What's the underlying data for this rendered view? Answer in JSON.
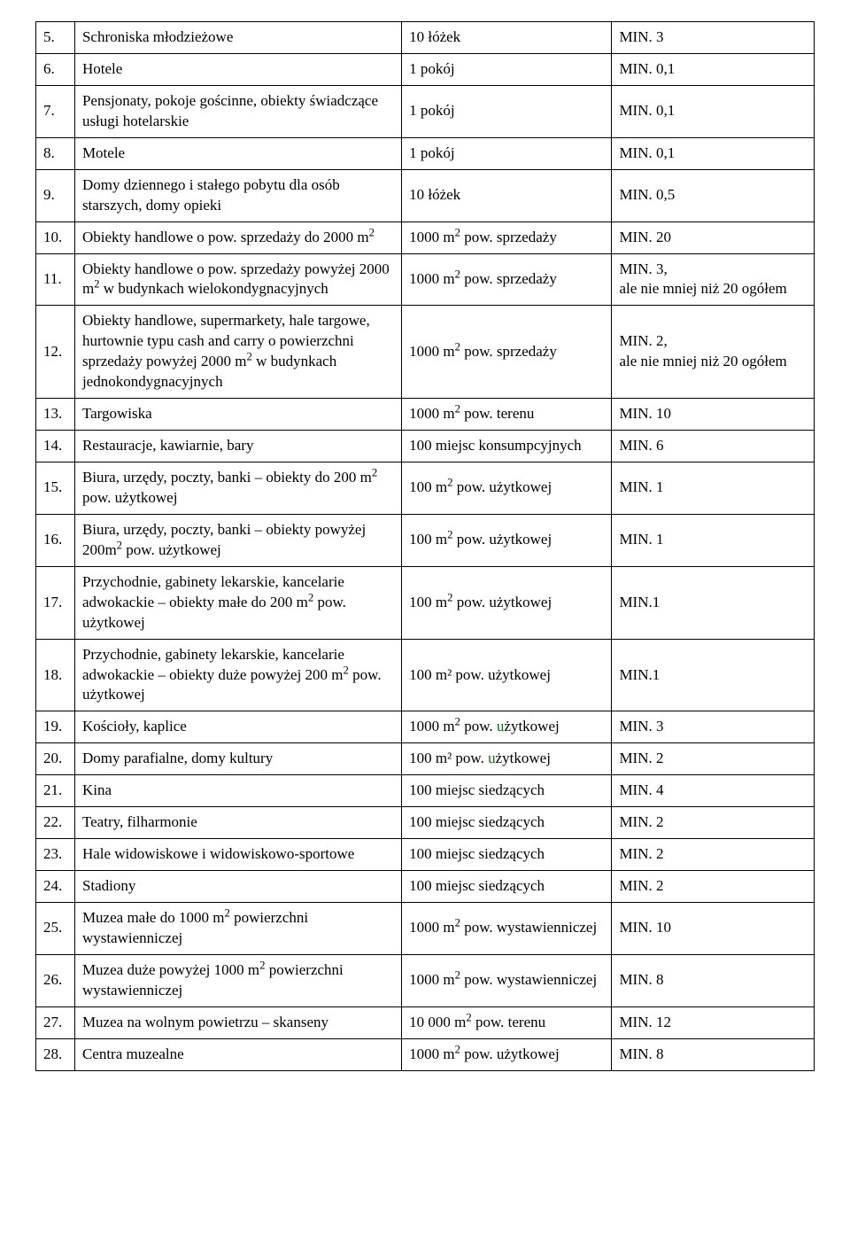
{
  "rows": [
    {
      "n": "5.",
      "desc": "Schroniska młodzieżowe",
      "unit": "10 łóżek",
      "min": "MIN. 3"
    },
    {
      "n": "6.",
      "desc": "Hotele",
      "unit": "1 pokój",
      "min": "MIN. 0,1"
    },
    {
      "n": "7.",
      "desc": "Pensjonaty, pokoje gościnne, obiekty świadczące usługi hotelarskie",
      "unit": "1 pokój",
      "min": "MIN. 0,1"
    },
    {
      "n": "8.",
      "desc": "Motele",
      "unit": "1 pokój",
      "min": "MIN. 0,1"
    },
    {
      "n": "9.",
      "desc": "Domy dziennego i stałego pobytu dla osób starszych, domy opieki",
      "unit": "10 łóżek",
      "min": "MIN. 0,5"
    },
    {
      "n": "10.",
      "desc_html": "Obiekty handlowe o pow. sprzedaży do 2000 m<sup>2</sup>",
      "unit_html": "1000 m<sup>2</sup> pow. sprzedaży",
      "min": "MIN. 20"
    },
    {
      "n": "11.",
      "desc_html": "Obiekty handlowe o pow. sprzedaży powyżej 2000 m<sup>2</sup> w budynkach wielokondygnacyjnych",
      "unit_html": "1000 m<sup>2</sup> pow. sprzedaży",
      "min": "MIN. 3,\nale nie mniej niż 20 ogółem"
    },
    {
      "n": "12.",
      "desc_html": "Obiekty handlowe, supermarkety, hale targowe, hurtownie typu cash and carry o powierzchni sprzedaży powyżej 2000 m<sup>2</sup> w budynkach jednokondygnacyjnych",
      "unit_html": "1000 m<sup>2</sup> pow. sprzedaży",
      "min": "MIN. 2,\nale nie mniej niż 20 ogółem"
    },
    {
      "n": "13.",
      "desc": "Targowiska",
      "unit_html": "1000 m<sup>2</sup> pow. terenu",
      "min": "MIN. 10"
    },
    {
      "n": "14.",
      "desc": "Restauracje, kawiarnie, bary",
      "unit": "100 miejsc konsumpcyjnych",
      "min": "MIN. 6"
    },
    {
      "n": "15.",
      "desc_html": "Biura, urzędy, poczty, banki – obiekty do  200 m<sup>2</sup> pow. użytkowej",
      "unit_html": "100 m<sup>2</sup> pow. użytkowej",
      "min": "MIN. 1"
    },
    {
      "n": "16.",
      "desc_html": "Biura, urzędy, poczty, banki – obiekty powyżej 200m<sup>2</sup> pow. użytkowej",
      "unit_html": "100 m<sup>2</sup> pow. użytkowej",
      "min": "MIN. 1"
    },
    {
      "n": "17.",
      "desc_html": "Przychodnie, gabinety lekarskie, kancelarie adwokackie – obiekty małe do 200 m<sup>2</sup> pow. użytkowej",
      "unit_html": "100 m<sup>2</sup> pow. użytkowej",
      "min": "MIN.1"
    },
    {
      "n": "18.",
      "desc_html": "Przychodnie, gabinety lekarskie, kancelarie adwokackie – obiekty duże powyżej 200 m<sup>2</sup> pow. użytkowej",
      "unit": "100 m² pow. użytkowej",
      "min": "MIN.1"
    },
    {
      "n": "19.",
      "desc": "Kościoły, kaplice",
      "unit_html": "1000 m<sup>2</sup> pow. <span class=\"u-green\">u</span>żytkowej",
      "min": "MIN. 3"
    },
    {
      "n": "20.",
      "desc": "Domy parafialne, domy kultury",
      "unit_html": "100 m² pow. <span class=\"u-green\">u</span>żytkowej",
      "min": "MIN. 2"
    },
    {
      "n": "21.",
      "desc": "Kina",
      "unit": "100 miejsc siedzących",
      "min": "MIN. 4"
    },
    {
      "n": "22.",
      "desc": "Teatry, filharmonie",
      "unit": "100 miejsc siedzących",
      "min": "MIN. 2"
    },
    {
      "n": "23.",
      "desc": "Hale widowiskowe i widowiskowo-sportowe",
      "unit": "100 miejsc siedzących",
      "min": "MIN. 2"
    },
    {
      "n": "24.",
      "desc": "Stadiony",
      "unit": "100 miejsc siedzących",
      "min": "MIN. 2"
    },
    {
      "n": "25.",
      "desc_html": "Muzea małe do 1000 m<sup>2</sup> powierzchni wystawienniczej",
      "unit_html": "1000 m<sup>2</sup> pow. wystawienniczej",
      "min": "MIN. 10"
    },
    {
      "n": "26.",
      "desc_html": "Muzea duże powyżej 1000 m<sup>2</sup> powierzchni wystawienniczej",
      "unit_html": "1000 m<sup>2</sup> pow. wystawienniczej",
      "min": "MIN. 8"
    },
    {
      "n": "27.",
      "desc": "Muzea na wolnym powietrzu – skanseny",
      "unit_html": "10 000 m<sup>2</sup> pow. terenu",
      "min": "MIN. 12"
    },
    {
      "n": "28.",
      "desc": "Centra muzealne",
      "unit_html": "1000 m<sup>2</sup> pow. użytkowej",
      "min": "MIN. 8"
    }
  ]
}
